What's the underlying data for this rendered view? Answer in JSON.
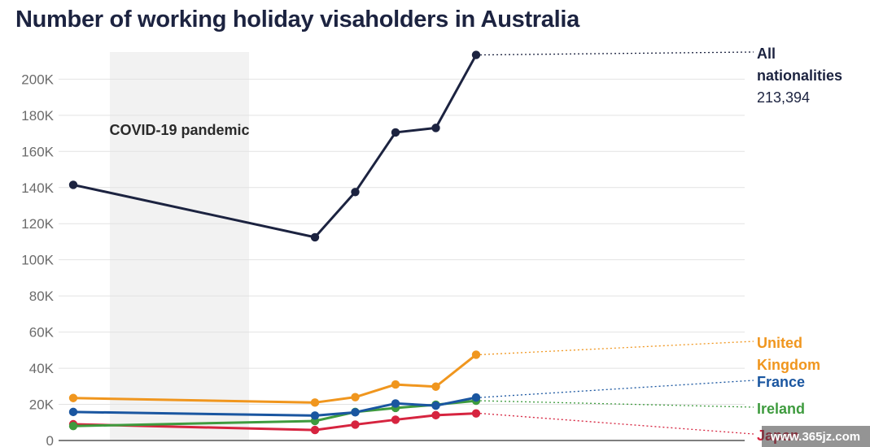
{
  "chart_data": {
    "type": "line",
    "title": "Number of working holiday visaholders in Australia",
    "ylim": [
      0,
      210000
    ],
    "yticks": [
      {
        "value": 0,
        "label": "0"
      },
      {
        "value": 20000,
        "label": "20K"
      },
      {
        "value": 40000,
        "label": "40K"
      },
      {
        "value": 60000,
        "label": "60K"
      },
      {
        "value": 80000,
        "label": "80K"
      },
      {
        "value": 100000,
        "label": "100K"
      },
      {
        "value": 120000,
        "label": "120K"
      },
      {
        "value": 140000,
        "label": "140K"
      },
      {
        "value": 160000,
        "label": "160K"
      },
      {
        "value": 180000,
        "label": "180K"
      },
      {
        "value": 200000,
        "label": "200K"
      }
    ],
    "x": [
      0,
      3.3,
      3.85,
      4.4,
      4.95,
      5.5
    ],
    "annotation": {
      "label": "COVID-19 pandemic",
      "x_start": 0.5,
      "x_end": 2.4
    },
    "grid": true,
    "series": [
      {
        "name": "All nationalities",
        "color": "#1c2340",
        "values": [
          141500,
          112500,
          137500,
          170500,
          173000,
          213394
        ],
        "value_label": "213,394"
      },
      {
        "name": "United Kingdom",
        "color": "#f0961e",
        "values": [
          23500,
          21000,
          24000,
          31000,
          29800,
          47500
        ]
      },
      {
        "name": "France",
        "color": "#1a56a0",
        "values": [
          15800,
          13800,
          15600,
          20500,
          19300,
          23800
        ]
      },
      {
        "name": "Ireland",
        "color": "#3e9b3e",
        "values": [
          8000,
          10800,
          15800,
          18000,
          19800,
          22000
        ]
      },
      {
        "name": "Japan",
        "color": "#d6243f",
        "values": [
          9000,
          5800,
          8800,
          11500,
          14000,
          15000
        ]
      }
    ]
  },
  "watermark": "www.365jz.com"
}
